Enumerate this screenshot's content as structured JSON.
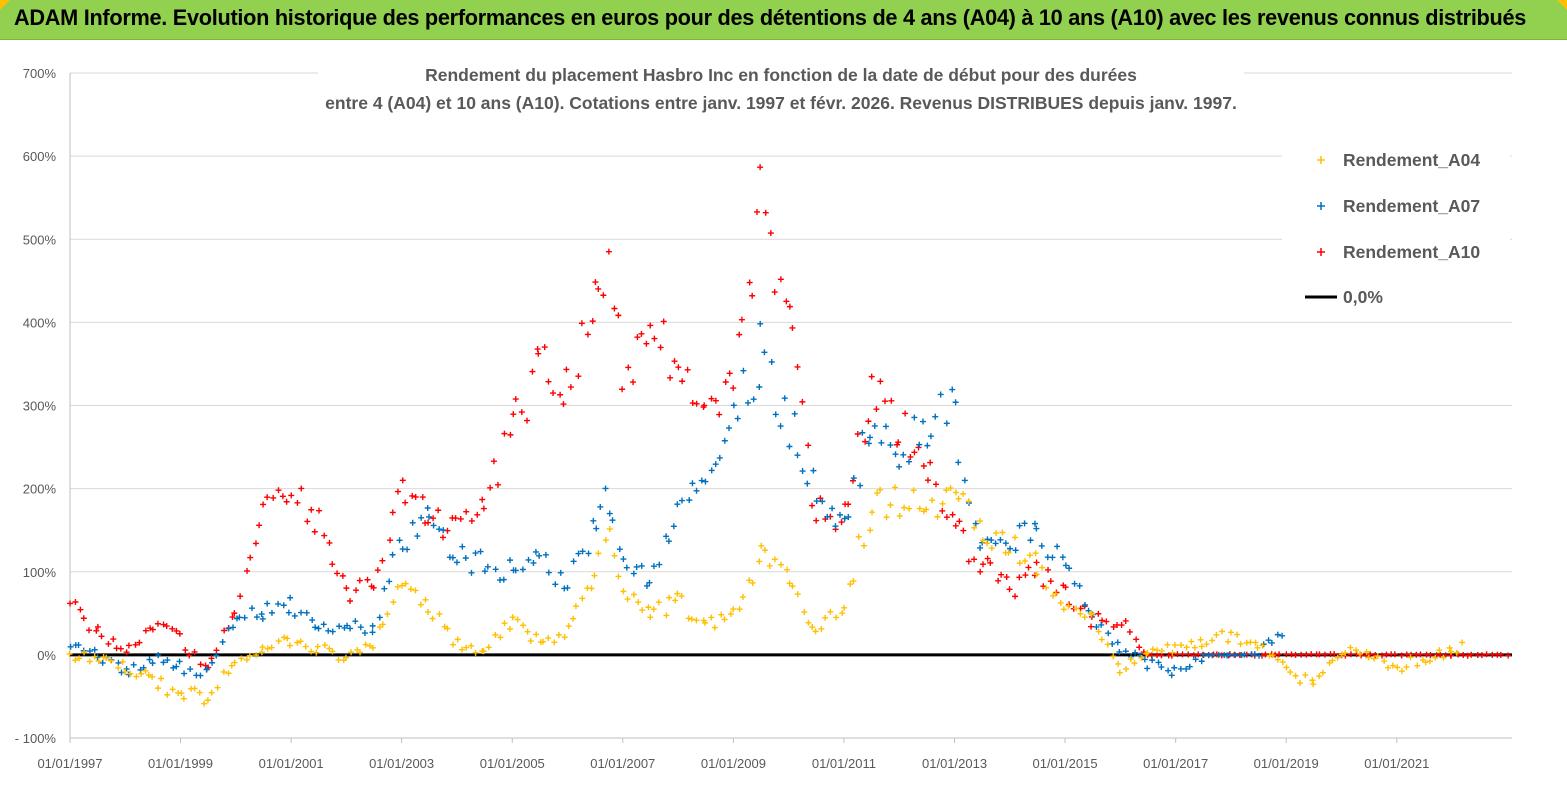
{
  "header": {
    "title": "ADAM Informe. Evolution historique des performances en euros pour des détentions de 4 ans (A04) à 10 ans (A10) avec les revenus connus distribués",
    "background_color": "#92d050"
  },
  "chart_data": {
    "type": "scatter",
    "title_line1": "Rendement du placement Hasbro Inc en fonction de la date de début pour des durées",
    "title_line2": "entre 4 (A04) et 10 ans (A10).  Cotations entre janv. 1997 et févr. 2026. Revenus DISTRIBUES depuis janv. 1997.",
    "xlabel": "",
    "ylabel": "",
    "x_axis": {
      "type": "date",
      "range": [
        "1997-01-01",
        "2023-02-01"
      ],
      "tick_labels": [
        "01/01/1997",
        "01/01/1999",
        "01/01/2001",
        "01/01/2003",
        "01/01/2005",
        "01/01/2007",
        "01/01/2009",
        "01/01/2011",
        "01/01/2013",
        "01/01/2015",
        "01/01/2017",
        "01/01/2019",
        "01/01/2021"
      ]
    },
    "y_axis": {
      "range": [
        -100,
        700
      ],
      "unit": "%",
      "tick_labels": [
        "- 100%",
        "0%",
        "100%",
        "200%",
        "300%",
        "400%",
        "500%",
        "600%",
        "700%"
      ]
    },
    "grid": "horizontal",
    "legend_position": "top-right",
    "marker": "+",
    "series": [
      {
        "name": "Rendement_A04",
        "color": "#ffc000",
        "points": [
          [
            "1997-01-01",
            0
          ],
          [
            "1997-07-01",
            -5
          ],
          [
            "1998-01-01",
            -15
          ],
          [
            "1998-07-01",
            -32
          ],
          [
            "1999-01-01",
            -45
          ],
          [
            "1999-07-01",
            -50
          ],
          [
            "2000-01-01",
            -10
          ],
          [
            "2000-07-01",
            12
          ],
          [
            "2001-01-01",
            18
          ],
          [
            "2001-07-01",
            8
          ],
          [
            "2002-01-01",
            -5
          ],
          [
            "2002-07-01",
            15
          ],
          [
            "2003-01-01",
            85
          ],
          [
            "2003-07-01",
            60
          ],
          [
            "2004-01-01",
            12
          ],
          [
            "2004-07-01",
            5
          ],
          [
            "2005-01-01",
            40
          ],
          [
            "2005-07-01",
            15
          ],
          [
            "2006-01-01",
            30
          ],
          [
            "2006-07-01",
            100
          ],
          [
            "2006-10-01",
            150
          ],
          [
            "2007-01-01",
            80
          ],
          [
            "2007-07-01",
            50
          ],
          [
            "2008-01-01",
            65
          ],
          [
            "2008-07-01",
            35
          ],
          [
            "2009-01-01",
            50
          ],
          [
            "2009-07-01",
            120
          ],
          [
            "2010-01-01",
            90
          ],
          [
            "2010-07-01",
            30
          ],
          [
            "2011-01-01",
            60
          ],
          [
            "2011-07-01",
            180
          ],
          [
            "2012-01-01",
            190
          ],
          [
            "2012-07-01",
            170
          ],
          [
            "2013-01-01",
            210
          ],
          [
            "2013-07-01",
            140
          ],
          [
            "2014-01-01",
            130
          ],
          [
            "2014-07-01",
            110
          ],
          [
            "2015-01-01",
            60
          ],
          [
            "2015-07-01",
            45
          ],
          [
            "2016-01-01",
            -15
          ],
          [
            "2016-07-01",
            0
          ],
          [
            "2017-01-01",
            10
          ],
          [
            "2017-07-01",
            15
          ],
          [
            "2018-01-01",
            25
          ],
          [
            "2018-07-01",
            10
          ],
          [
            "2019-01-01",
            -10
          ],
          [
            "2019-07-01",
            -40
          ],
          [
            "2020-01-01",
            5
          ],
          [
            "2020-07-01",
            0
          ],
          [
            "2021-01-01",
            -15
          ],
          [
            "2021-07-01",
            -5
          ],
          [
            "2022-01-01",
            5
          ],
          [
            "2022-04-01",
            10
          ]
        ]
      },
      {
        "name": "Rendement_A07",
        "color": "#0070c0",
        "points": [
          [
            "1997-01-01",
            15
          ],
          [
            "1997-07-01",
            0
          ],
          [
            "1998-01-01",
            -20
          ],
          [
            "1998-07-01",
            -5
          ],
          [
            "1999-01-01",
            -15
          ],
          [
            "1999-07-01",
            -25
          ],
          [
            "2000-01-01",
            45
          ],
          [
            "2000-07-01",
            50
          ],
          [
            "2001-01-01",
            60
          ],
          [
            "2001-07-01",
            40
          ],
          [
            "2002-01-01",
            35
          ],
          [
            "2002-07-01",
            35
          ],
          [
            "2003-01-01",
            140
          ],
          [
            "2003-07-01",
            160
          ],
          [
            "2004-01-01",
            120
          ],
          [
            "2004-07-01",
            110
          ],
          [
            "2005-01-01",
            100
          ],
          [
            "2005-07-01",
            110
          ],
          [
            "2006-01-01",
            90
          ],
          [
            "2006-07-01",
            150
          ],
          [
            "2006-10-01",
            190
          ],
          [
            "2007-01-01",
            110
          ],
          [
            "2007-07-01",
            95
          ],
          [
            "2008-01-01",
            180
          ],
          [
            "2008-07-01",
            230
          ],
          [
            "2009-01-01",
            290
          ],
          [
            "2009-07-01",
            360
          ],
          [
            "2010-01-01",
            280
          ],
          [
            "2010-07-01",
            200
          ],
          [
            "2011-01-01",
            150
          ],
          [
            "2011-07-01",
            290
          ],
          [
            "2012-01-01",
            230
          ],
          [
            "2012-07-01",
            280
          ],
          [
            "2013-01-01",
            290
          ],
          [
            "2013-07-01",
            130
          ],
          [
            "2014-01-01",
            140
          ],
          [
            "2014-07-01",
            140
          ],
          [
            "2015-01-01",
            120
          ],
          [
            "2015-07-01",
            40
          ],
          [
            "2016-01-01",
            10
          ],
          [
            "2016-07-01",
            -10
          ],
          [
            "2017-01-01",
            -20
          ],
          [
            "2017-07-01",
            0
          ],
          [
            "2018-01-01",
            0
          ],
          [
            "2018-07-01",
            0
          ],
          [
            "2019-01-01",
            35
          ]
        ]
      },
      {
        "name": "Rendement_A10",
        "color": "#ff0000",
        "points": [
          [
            "1997-01-01",
            60
          ],
          [
            "1997-07-01",
            30
          ],
          [
            "1998-01-01",
            0
          ],
          [
            "1998-07-01",
            40
          ],
          [
            "1999-01-01",
            20
          ],
          [
            "1999-07-01",
            -20
          ],
          [
            "2000-01-01",
            60
          ],
          [
            "2000-07-01",
            170
          ],
          [
            "2001-01-01",
            200
          ],
          [
            "2001-07-01",
            160
          ],
          [
            "2002-01-01",
            75
          ],
          [
            "2002-07-01",
            80
          ],
          [
            "2003-01-01",
            200
          ],
          [
            "2003-07-01",
            170
          ],
          [
            "2004-01-01",
            150
          ],
          [
            "2004-07-01",
            180
          ],
          [
            "2005-01-01",
            270
          ],
          [
            "2005-07-01",
            350
          ],
          [
            "2006-01-01",
            330
          ],
          [
            "2006-07-01",
            420
          ],
          [
            "2006-10-01",
            500
          ],
          [
            "2007-01-01",
            350
          ],
          [
            "2007-07-01",
            360
          ],
          [
            "2008-01-01",
            370
          ],
          [
            "2008-07-01",
            280
          ],
          [
            "2009-01-01",
            310
          ],
          [
            "2009-07-01",
            540
          ],
          [
            "2010-01-01",
            400
          ],
          [
            "2010-07-01",
            170
          ],
          [
            "2011-01-01",
            170
          ],
          [
            "2011-07-01",
            310
          ],
          [
            "2012-01-01",
            280
          ],
          [
            "2012-07-01",
            230
          ],
          [
            "2013-01-01",
            150
          ],
          [
            "2013-07-01",
            110
          ],
          [
            "2014-01-01",
            80
          ],
          [
            "2014-07-01",
            100
          ],
          [
            "2015-01-01",
            70
          ],
          [
            "2015-07-01",
            40
          ],
          [
            "2016-01-01",
            40
          ],
          [
            "2016-07-01",
            0
          ],
          [
            "2018-01-01",
            0
          ],
          [
            "2020-01-01",
            0
          ],
          [
            "2022-01-01",
            0
          ],
          [
            "2023-01-01",
            0
          ]
        ]
      },
      {
        "name": "0,0%",
        "color": "#000000",
        "line": true,
        "points": [
          [
            "1997-01-01",
            0
          ],
          [
            "2023-02-01",
            0
          ]
        ]
      }
    ]
  }
}
